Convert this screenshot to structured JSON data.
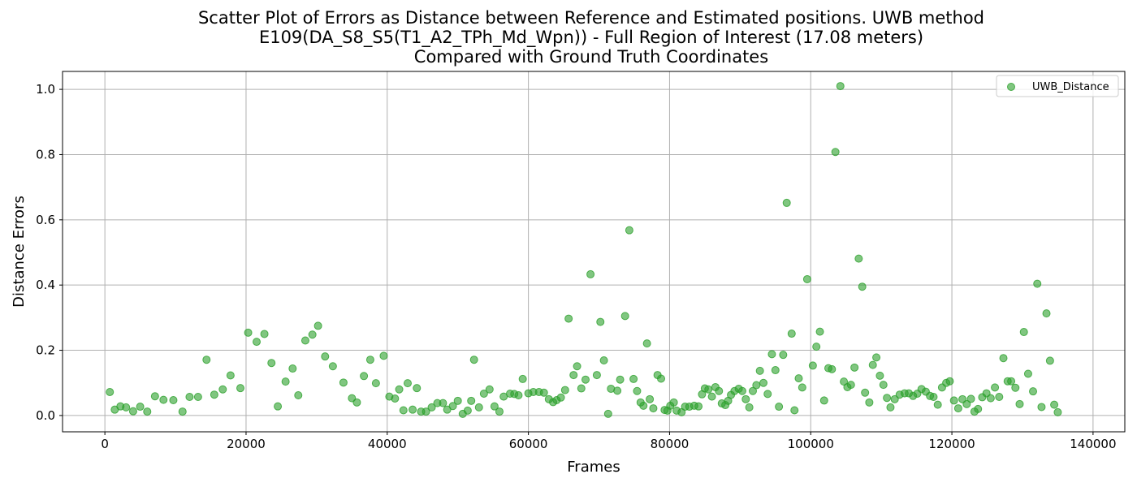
{
  "chart_data": {
    "type": "scatter",
    "title_lines": [
      "Scatter Plot of Errors as Distance between Reference and Estimated positions. UWB method",
      "E109(DA_S8_S5(T1_A2_TPh_Md_Wpn)) - Full Region of Interest (17.08 meters)",
      "Compared with Ground Truth Coordinates"
    ],
    "xlabel": "Frames",
    "ylabel": "Distance Errors",
    "xlim": [
      -6000,
      144500
    ],
    "ylim": [
      -0.05,
      1.055
    ],
    "xticks": [
      0,
      20000,
      40000,
      60000,
      80000,
      100000,
      120000,
      140000
    ],
    "xtick_labels": [
      "0",
      "20000",
      "40000",
      "60000",
      "80000",
      "100000",
      "120000",
      "140000"
    ],
    "yticks": [
      0.0,
      0.2,
      0.4,
      0.6,
      0.8,
      1.0
    ],
    "ytick_labels": [
      "0.0",
      "0.2",
      "0.4",
      "0.6",
      "0.8",
      "1.0"
    ],
    "grid": true,
    "legend_position": "top-right",
    "color": "#2ca02c",
    "series": [
      {
        "name": "UWB_Distance",
        "points": [
          [
            700,
            0.072
          ],
          [
            1400,
            0.018
          ],
          [
            2200,
            0.028
          ],
          [
            3000,
            0.025
          ],
          [
            4000,
            0.013
          ],
          [
            5000,
            0.027
          ],
          [
            6000,
            0.012
          ],
          [
            7100,
            0.059
          ],
          [
            8300,
            0.048
          ],
          [
            9700,
            0.047
          ],
          [
            11000,
            0.012
          ],
          [
            12000,
            0.057
          ],
          [
            13200,
            0.057
          ],
          [
            14400,
            0.171
          ],
          [
            15500,
            0.064
          ],
          [
            16700,
            0.08
          ],
          [
            17800,
            0.123
          ],
          [
            19200,
            0.084
          ],
          [
            20300,
            0.254
          ],
          [
            21500,
            0.226
          ],
          [
            22600,
            0.25
          ],
          [
            23600,
            0.161
          ],
          [
            24500,
            0.028
          ],
          [
            25600,
            0.104
          ],
          [
            26600,
            0.144
          ],
          [
            27400,
            0.062
          ],
          [
            28400,
            0.23
          ],
          [
            29400,
            0.248
          ],
          [
            30200,
            0.275
          ],
          [
            31200,
            0.181
          ],
          [
            32300,
            0.151
          ],
          [
            33800,
            0.101
          ],
          [
            35000,
            0.053
          ],
          [
            35700,
            0.04
          ],
          [
            36700,
            0.121
          ],
          [
            37600,
            0.171
          ],
          [
            38400,
            0.099
          ],
          [
            39500,
            0.183
          ],
          [
            40300,
            0.058
          ],
          [
            41100,
            0.052
          ],
          [
            41700,
            0.08
          ],
          [
            42300,
            0.016
          ],
          [
            42900,
            0.099
          ],
          [
            43600,
            0.018
          ],
          [
            44200,
            0.084
          ],
          [
            44800,
            0.012
          ],
          [
            45500,
            0.012
          ],
          [
            46300,
            0.025
          ],
          [
            47100,
            0.038
          ],
          [
            47900,
            0.038
          ],
          [
            48500,
            0.018
          ],
          [
            49300,
            0.029
          ],
          [
            50000,
            0.045
          ],
          [
            50700,
            0.005
          ],
          [
            51400,
            0.015
          ],
          [
            51900,
            0.045
          ],
          [
            52300,
            0.171
          ],
          [
            53000,
            0.025
          ],
          [
            53700,
            0.067
          ],
          [
            54500,
            0.08
          ],
          [
            55200,
            0.028
          ],
          [
            55900,
            0.012
          ],
          [
            56500,
            0.058
          ],
          [
            57400,
            0.067
          ],
          [
            58000,
            0.066
          ],
          [
            58600,
            0.062
          ],
          [
            59200,
            0.112
          ],
          [
            60000,
            0.068
          ],
          [
            60700,
            0.072
          ],
          [
            61500,
            0.072
          ],
          [
            62200,
            0.07
          ],
          [
            62900,
            0.05
          ],
          [
            63500,
            0.041
          ],
          [
            64000,
            0.047
          ],
          [
            64600,
            0.055
          ],
          [
            65200,
            0.078
          ],
          [
            65700,
            0.297
          ],
          [
            66400,
            0.124
          ],
          [
            66900,
            0.151
          ],
          [
            67500,
            0.083
          ],
          [
            68100,
            0.11
          ],
          [
            68800,
            0.433
          ],
          [
            69700,
            0.124
          ],
          [
            70200,
            0.287
          ],
          [
            70700,
            0.169
          ],
          [
            71300,
            0.005
          ],
          [
            71700,
            0.082
          ],
          [
            72600,
            0.076
          ],
          [
            73000,
            0.11
          ],
          [
            73700,
            0.305
          ],
          [
            74300,
            0.568
          ],
          [
            74900,
            0.112
          ],
          [
            75400,
            0.075
          ],
          [
            75900,
            0.04
          ],
          [
            76300,
            0.03
          ],
          [
            76800,
            0.221
          ],
          [
            77200,
            0.05
          ],
          [
            77700,
            0.022
          ],
          [
            78300,
            0.124
          ],
          [
            78800,
            0.113
          ],
          [
            79300,
            0.017
          ],
          [
            79700,
            0.015
          ],
          [
            80100,
            0.03
          ],
          [
            80600,
            0.04
          ],
          [
            81000,
            0.015
          ],
          [
            81700,
            0.01
          ],
          [
            82200,
            0.027
          ],
          [
            82800,
            0.027
          ],
          [
            83500,
            0.03
          ],
          [
            84100,
            0.028
          ],
          [
            84600,
            0.065
          ],
          [
            85000,
            0.083
          ],
          [
            85500,
            0.08
          ],
          [
            86000,
            0.058
          ],
          [
            86500,
            0.087
          ],
          [
            87000,
            0.075
          ],
          [
            87400,
            0.037
          ],
          [
            87900,
            0.032
          ],
          [
            88300,
            0.045
          ],
          [
            88700,
            0.063
          ],
          [
            89200,
            0.075
          ],
          [
            89800,
            0.082
          ],
          [
            90300,
            0.075
          ],
          [
            90800,
            0.05
          ],
          [
            91300,
            0.025
          ],
          [
            91800,
            0.075
          ],
          [
            92300,
            0.093
          ],
          [
            92800,
            0.137
          ],
          [
            93300,
            0.1
          ],
          [
            93900,
            0.066
          ],
          [
            94500,
            0.188
          ],
          [
            95000,
            0.139
          ],
          [
            95500,
            0.027
          ],
          [
            96100,
            0.186
          ],
          [
            96600,
            0.652
          ],
          [
            97300,
            0.251
          ],
          [
            97700,
            0.016
          ],
          [
            98300,
            0.114
          ],
          [
            98800,
            0.086
          ],
          [
            99500,
            0.418
          ],
          [
            100300,
            0.153
          ],
          [
            100800,
            0.211
          ],
          [
            101300,
            0.257
          ],
          [
            101900,
            0.046
          ],
          [
            102500,
            0.145
          ],
          [
            103000,
            0.142
          ],
          [
            103500,
            0.808
          ],
          [
            104200,
            1.01
          ],
          [
            104700,
            0.104
          ],
          [
            105200,
            0.087
          ],
          [
            105700,
            0.094
          ],
          [
            106200,
            0.147
          ],
          [
            106800,
            0.481
          ],
          [
            107300,
            0.395
          ],
          [
            107700,
            0.07
          ],
          [
            108300,
            0.04
          ],
          [
            108800,
            0.155
          ],
          [
            109300,
            0.178
          ],
          [
            109800,
            0.122
          ],
          [
            110300,
            0.094
          ],
          [
            110800,
            0.054
          ],
          [
            111300,
            0.025
          ],
          [
            111900,
            0.05
          ],
          [
            112600,
            0.064
          ],
          [
            113300,
            0.068
          ],
          [
            113900,
            0.068
          ],
          [
            114500,
            0.06
          ],
          [
            115100,
            0.067
          ],
          [
            115700,
            0.081
          ],
          [
            116300,
            0.073
          ],
          [
            116900,
            0.06
          ],
          [
            117400,
            0.057
          ],
          [
            118000,
            0.033
          ],
          [
            118600,
            0.086
          ],
          [
            119200,
            0.1
          ],
          [
            119700,
            0.105
          ],
          [
            120300,
            0.046
          ],
          [
            120900,
            0.022
          ],
          [
            121500,
            0.05
          ],
          [
            122100,
            0.035
          ],
          [
            122700,
            0.051
          ],
          [
            123200,
            0.012
          ],
          [
            123700,
            0.02
          ],
          [
            124300,
            0.056
          ],
          [
            124900,
            0.068
          ],
          [
            125500,
            0.053
          ],
          [
            126100,
            0.086
          ],
          [
            126700,
            0.057
          ],
          [
            127300,
            0.176
          ],
          [
            127900,
            0.105
          ],
          [
            128400,
            0.105
          ],
          [
            129000,
            0.085
          ],
          [
            129600,
            0.035
          ],
          [
            130200,
            0.256
          ],
          [
            130800,
            0.128
          ],
          [
            131500,
            0.074
          ],
          [
            132100,
            0.404
          ],
          [
            132700,
            0.026
          ],
          [
            133400,
            0.313
          ],
          [
            133900,
            0.168
          ],
          [
            134500,
            0.033
          ],
          [
            135000,
            0.01
          ]
        ]
      }
    ]
  }
}
